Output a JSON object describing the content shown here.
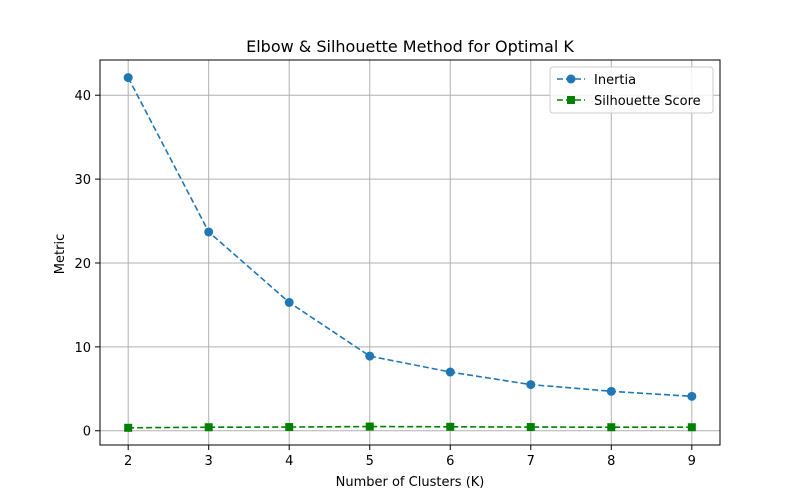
{
  "chart_data": {
    "type": "line",
    "title": "Elbow & Silhouette Method for Optimal K",
    "xlabel": "Number of Clusters (K)",
    "ylabel": "Metric",
    "x": [
      2,
      3,
      4,
      5,
      6,
      7,
      8,
      9
    ],
    "xlim": [
      1.65,
      9.35
    ],
    "ylim": [
      -1.7,
      44.2
    ],
    "xticks": [
      2,
      3,
      4,
      5,
      6,
      7,
      8,
      9
    ],
    "yticks": [
      0,
      10,
      20,
      30,
      40
    ],
    "grid": true,
    "legend": "top-right",
    "series": [
      {
        "name": "Inertia",
        "color": "#1f77b4",
        "marker": "circle",
        "linestyle": "dashed",
        "values": [
          42.1,
          23.7,
          15.3,
          8.9,
          7.0,
          5.5,
          4.7,
          4.1
        ]
      },
      {
        "name": "Silhouette Score",
        "color": "#008000",
        "marker": "square",
        "linestyle": "dashed",
        "values": [
          0.35,
          0.42,
          0.44,
          0.5,
          0.47,
          0.44,
          0.42,
          0.42
        ]
      }
    ]
  }
}
